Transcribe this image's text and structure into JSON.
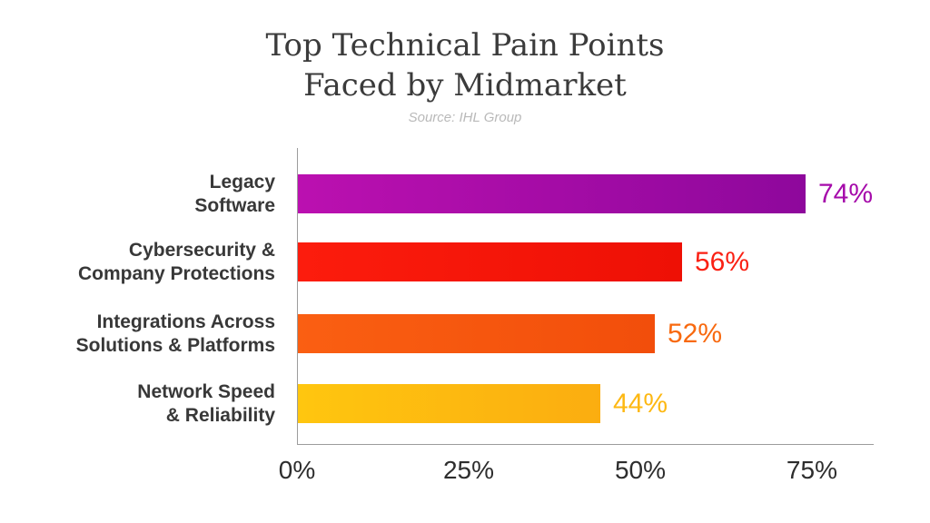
{
  "header": {
    "title_line1": "Top Technical Pain Points",
    "title_line2": "Faced by Midmarket",
    "source": "Source: IHL Group"
  },
  "chart_data": {
    "type": "bar",
    "orientation": "horizontal",
    "title": "Top Technical Pain Points Faced by Midmarket",
    "subtitle": "Source: IHL Group",
    "categories": [
      "Legacy Software",
      "Cybersecurity & Company Protections",
      "Integrations Across Solutions & Platforms",
      "Network Speed & Reliability"
    ],
    "category_lines": [
      [
        "Legacy",
        "Software"
      ],
      [
        "Cybersecurity &",
        "Company Protections"
      ],
      [
        "Integrations Across",
        "Solutions & Platforms"
      ],
      [
        "Network Speed",
        "& Reliability"
      ]
    ],
    "values": [
      74,
      56,
      52,
      44
    ],
    "value_labels": [
      "74%",
      "56%",
      "52%",
      "44%"
    ],
    "unit": "%",
    "xlim": [
      0,
      84
    ],
    "x_ticks": [
      {
        "value": 0,
        "label": "0%"
      },
      {
        "value": 25,
        "label": "25%"
      },
      {
        "value": 50,
        "label": "50%"
      },
      {
        "value": 75,
        "label": "75%"
      }
    ],
    "grid": false,
    "legend": false,
    "bar_gradients": [
      {
        "from": "#bb10b0",
        "to": "#8e089c"
      },
      {
        "from": "#fc1c0d",
        "to": "#ee1005"
      },
      {
        "from": "#fa5f12",
        "to": "#f24e0b"
      },
      {
        "from": "#ffc60f",
        "to": "#fbad10"
      }
    ],
    "value_label_colors": [
      "#a50aaa",
      "#fa2013",
      "#f8690f",
      "#fdb813"
    ],
    "category_label_color": "#383838",
    "tick_label_color": "#2d2d2d",
    "axis_color": "#9c9c9c"
  }
}
